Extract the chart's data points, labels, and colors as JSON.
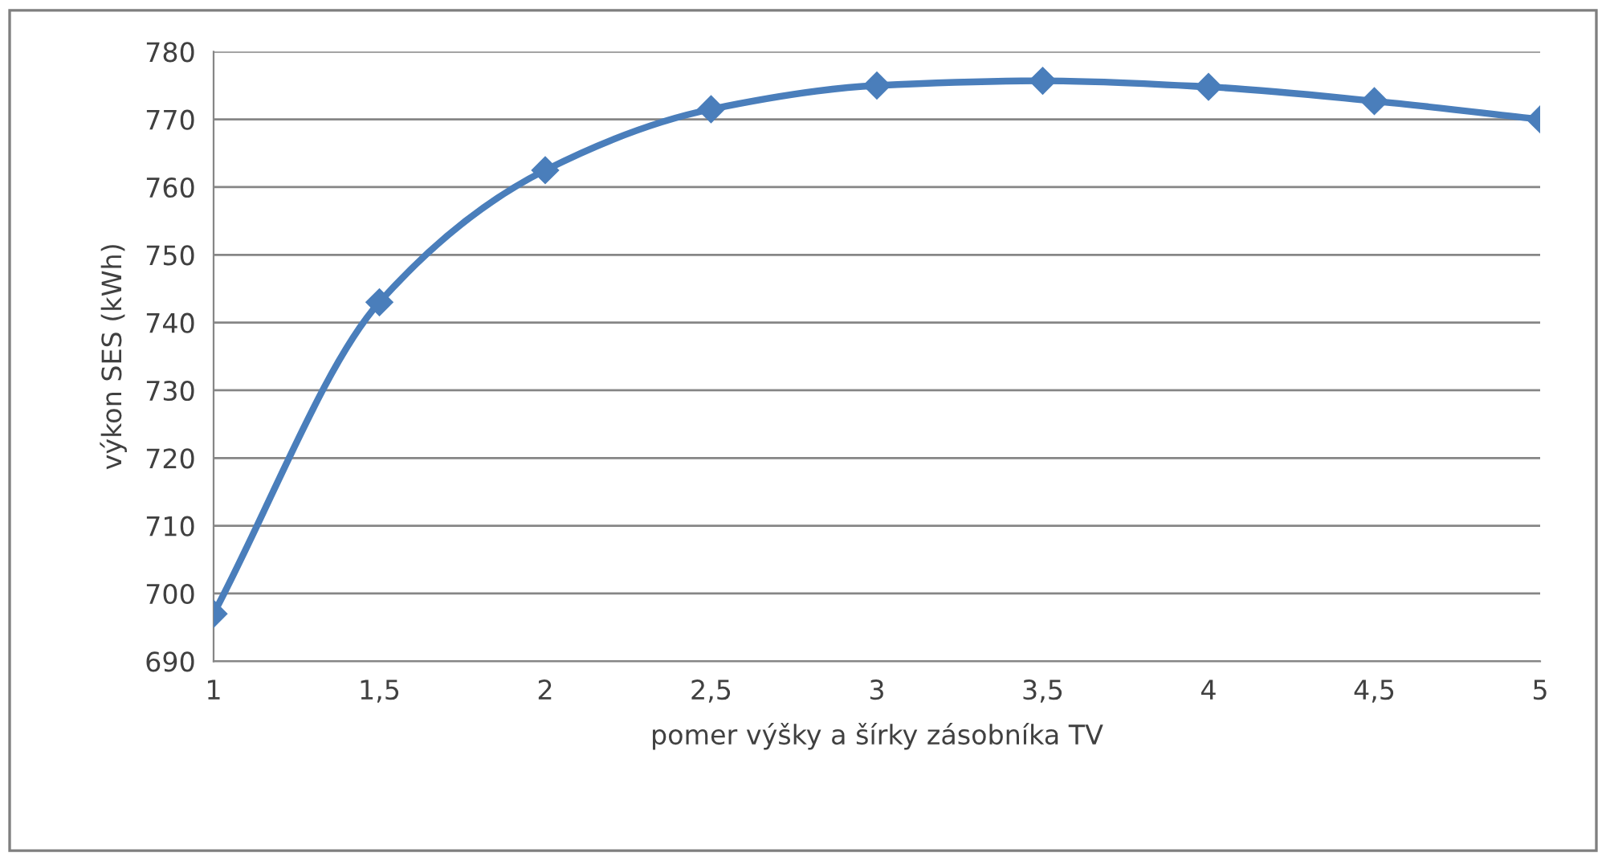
{
  "chart_data": {
    "type": "line",
    "xlabel": "pomer výšky a šírky zásobníka TV",
    "ylabel": "výkon SES (kWh)",
    "x": [
      1,
      1.5,
      2,
      2.5,
      3,
      3.5,
      4,
      4.5,
      5
    ],
    "series": [
      {
        "color": "#4a7ebb",
        "values": [
          697,
          743,
          762.5,
          771.5,
          775,
          775.7,
          774.8,
          772.7,
          770
        ]
      }
    ],
    "xlim": [
      1,
      5
    ],
    "xticks": [
      1,
      {
        "value": 1.5,
        "label": "1,5"
      },
      2,
      {
        "value": 2.5,
        "label": "2,5"
      },
      3,
      {
        "value": 3.5,
        "label": "3,5"
      },
      4,
      {
        "value": 4.5,
        "label": "4,5"
      },
      5
    ],
    "ylim": [
      690,
      780
    ],
    "yticks": [
      690,
      700,
      710,
      720,
      730,
      740,
      750,
      760,
      770,
      780
    ],
    "grid": "y",
    "marker": "diamond",
    "line_style": "solid",
    "legend": false
  }
}
